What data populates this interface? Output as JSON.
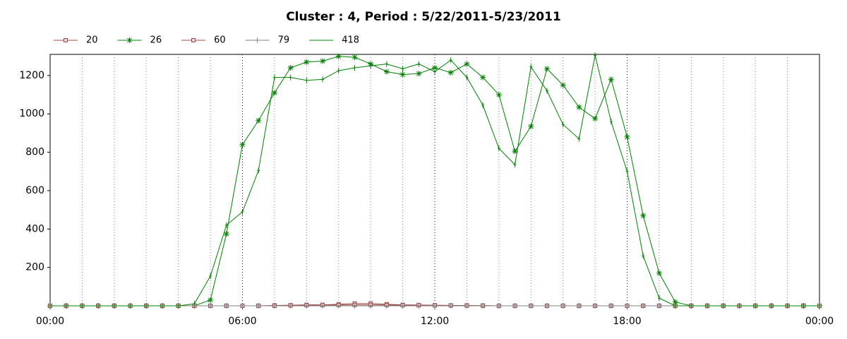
{
  "chart_data": {
    "type": "line",
    "title": "Cluster : 4, Period : 5/22/2011-5/23/2011",
    "x": [
      0,
      0.5,
      1,
      1.5,
      2,
      2.5,
      3,
      3.5,
      4,
      4.5,
      5,
      5.5,
      6,
      6.5,
      7,
      7.5,
      8,
      8.5,
      9,
      9.5,
      10,
      10.5,
      11,
      11.5,
      12,
      12.5,
      13,
      13.5,
      14,
      14.5,
      15,
      15.5,
      16,
      16.5,
      17,
      17.5,
      18,
      18.5,
      19,
      19.5,
      20,
      20.5,
      21,
      21.5,
      22,
      22.5,
      23,
      23.5,
      24
    ],
    "xlim": [
      0,
      24
    ],
    "xticks": [
      {
        "value": 0,
        "label": "00:00"
      },
      {
        "value": 6,
        "label": "06:00"
      },
      {
        "value": 12,
        "label": "12:00"
      },
      {
        "value": 18,
        "label": "18:00"
      },
      {
        "value": 24,
        "label": "00:00"
      }
    ],
    "ylim": [
      0,
      1310
    ],
    "yticks": [
      200,
      400,
      600,
      800,
      1000,
      1200
    ],
    "grid": "x",
    "legend": "top-left",
    "series": [
      {
        "name": "20",
        "color": "#a04848",
        "marker": "square",
        "values": [
          0,
          0,
          0,
          0,
          0,
          0,
          0,
          0,
          0,
          0,
          0,
          0,
          0,
          0,
          2,
          3,
          5,
          5,
          8,
          12,
          12,
          8,
          5,
          4,
          3,
          2,
          2,
          1,
          0,
          0,
          0,
          0,
          0,
          0,
          0,
          0,
          0,
          0,
          0,
          0,
          0,
          0,
          0,
          0,
          0,
          0,
          0,
          0,
          0
        ]
      },
      {
        "name": "26",
        "color": "#008000",
        "marker": "asterisk",
        "values": [
          0,
          0,
          0,
          0,
          0,
          0,
          0,
          0,
          0,
          0,
          30,
          375,
          840,
          965,
          1110,
          1240,
          1270,
          1275,
          1300,
          1295,
          1260,
          1220,
          1205,
          1210,
          1240,
          1215,
          1260,
          1190,
          1100,
          805,
          935,
          1235,
          1150,
          1035,
          975,
          1180,
          880,
          470,
          170,
          20,
          0,
          0,
          0,
          0,
          0,
          0,
          0,
          0,
          0
        ]
      },
      {
        "name": "60",
        "color": "#a04848",
        "marker": "square",
        "values": [
          0,
          0,
          0,
          0,
          0,
          0,
          0,
          0,
          0,
          0,
          0,
          0,
          0,
          0,
          0,
          2,
          3,
          4,
          4,
          5,
          5,
          4,
          3,
          3,
          2,
          2,
          1,
          1,
          0,
          0,
          0,
          0,
          0,
          0,
          0,
          0,
          0,
          0,
          0,
          0,
          0,
          0,
          0,
          0,
          0,
          0,
          0,
          0,
          0
        ]
      },
      {
        "name": "79",
        "color": "#808080",
        "marker": "plus",
        "values": [
          0,
          0,
          0,
          0,
          0,
          0,
          0,
          0,
          0,
          0,
          0,
          0,
          0,
          0,
          0,
          0,
          0,
          0,
          0,
          0,
          0,
          0,
          0,
          0,
          0,
          0,
          0,
          0,
          0,
          0,
          0,
          0,
          0,
          0,
          0,
          0,
          0,
          0,
          0,
          0,
          0,
          0,
          0,
          0,
          0,
          0,
          0,
          0,
          0
        ]
      },
      {
        "name": "418",
        "color": "#008000",
        "marker": "plus",
        "values": [
          0,
          0,
          0,
          0,
          0,
          0,
          0,
          0,
          0,
          10,
          155,
          420,
          490,
          705,
          1190,
          1190,
          1175,
          1180,
          1225,
          1240,
          1250,
          1260,
          1235,
          1260,
          1220,
          1280,
          1190,
          1045,
          820,
          735,
          1245,
          1120,
          945,
          870,
          1305,
          960,
          700,
          260,
          40,
          0,
          0,
          0,
          0,
          0,
          0,
          0,
          0,
          0,
          0
        ]
      }
    ]
  }
}
